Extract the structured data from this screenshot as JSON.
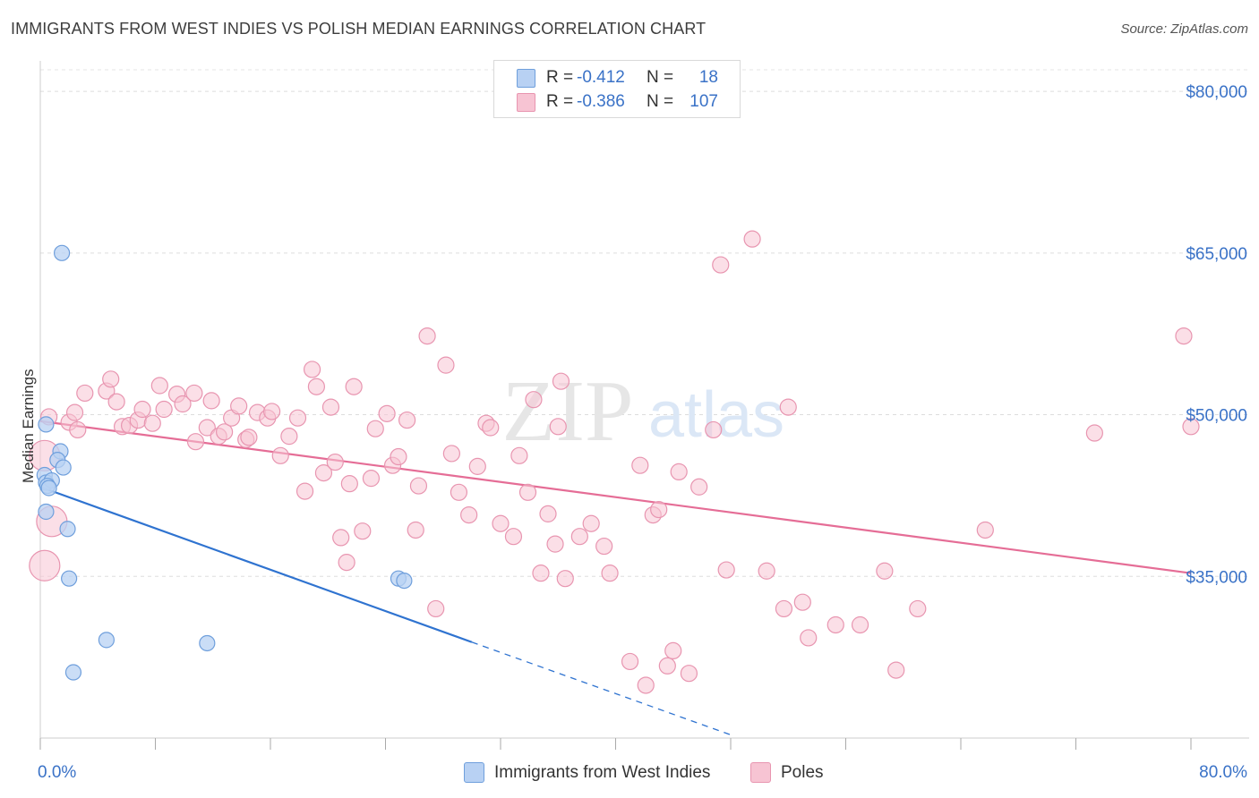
{
  "title": "IMMIGRANTS FROM WEST INDIES VS POLISH MEDIAN EARNINGS CORRELATION CHART",
  "source": "Source: ZipAtlas.com",
  "watermark": {
    "zip": "ZIP",
    "atlas": "atlas"
  },
  "legend": {
    "rows": [
      {
        "r_label": "R =",
        "r_value": "-0.412",
        "n_label": "N =",
        "n_value": "18"
      },
      {
        "r_label": "R =",
        "r_value": "-0.386",
        "n_label": "N =",
        "n_value": "107"
      }
    ]
  },
  "bottom_legend": {
    "series_1": "Immigrants from West Indies",
    "series_2": "Poles"
  },
  "colors": {
    "series_1_fill": "#b8d1f3",
    "series_1_stroke": "#6f9fdc",
    "series_1_line": "#2f73d0",
    "series_2_fill": "#f7c4d3",
    "series_2_stroke": "#e895b0",
    "series_2_line": "#e56d96",
    "axis_text": "#3a72c7"
  },
  "chart_data": {
    "type": "scatter",
    "title": "IMMIGRANTS FROM WEST INDIES VS POLISH MEDIAN EARNINGS CORRELATION CHART",
    "xlabel": "",
    "ylabel": "Median Earnings",
    "xlim": [
      0,
      80
    ],
    "ylim": [
      20000,
      82000
    ],
    "x_tick_labels": [
      "0.0%",
      "80.0%"
    ],
    "y_ticks": [
      35000,
      50000,
      65000,
      80000
    ],
    "y_tick_labels": [
      "$35,000",
      "$50,000",
      "$65,000",
      "$80,000"
    ],
    "grid": "horizontal dashed",
    "legend_position": "top-center",
    "series": [
      {
        "name": "Immigrants from West Indies",
        "points": [
          [
            0.4,
            49100
          ],
          [
            1.5,
            65000
          ],
          [
            1.4,
            46600
          ],
          [
            1.2,
            45800
          ],
          [
            1.6,
            45100
          ],
          [
            0.3,
            44400
          ],
          [
            0.4,
            43700
          ],
          [
            0.8,
            43900
          ],
          [
            0.5,
            43400
          ],
          [
            0.6,
            43200
          ],
          [
            0.4,
            41000
          ],
          [
            1.9,
            39400
          ],
          [
            2.0,
            34800
          ],
          [
            2.3,
            26100
          ],
          [
            4.6,
            29100
          ],
          [
            11.6,
            28800
          ],
          [
            24.9,
            34800
          ],
          [
            25.3,
            34600
          ]
        ],
        "trend": {
          "x": [
            0,
            30
          ],
          "y": [
            43300,
            28900
          ],
          "dashed_to": [
            48,
            20300
          ]
        }
      },
      {
        "name": "Poles",
        "points": [
          [
            0.6,
            49800
          ],
          [
            2.0,
            49300
          ],
          [
            2.4,
            50200
          ],
          [
            2.6,
            48600
          ],
          [
            3.1,
            52000
          ],
          [
            4.6,
            52200
          ],
          [
            4.9,
            53300
          ],
          [
            5.3,
            51200
          ],
          [
            5.7,
            48900
          ],
          [
            6.2,
            49000
          ],
          [
            6.8,
            49500
          ],
          [
            7.1,
            50500
          ],
          [
            7.8,
            49200
          ],
          [
            8.3,
            52700
          ],
          [
            8.6,
            50500
          ],
          [
            9.5,
            51900
          ],
          [
            9.9,
            51000
          ],
          [
            10.7,
            52000
          ],
          [
            10.8,
            47500
          ],
          [
            11.6,
            48800
          ],
          [
            11.9,
            51300
          ],
          [
            12.4,
            48000
          ],
          [
            12.8,
            48400
          ],
          [
            13.3,
            49700
          ],
          [
            13.8,
            50800
          ],
          [
            14.3,
            47700
          ],
          [
            14.5,
            47900
          ],
          [
            15.1,
            50200
          ],
          [
            15.8,
            49700
          ],
          [
            16.1,
            50300
          ],
          [
            16.7,
            46200
          ],
          [
            17.3,
            48000
          ],
          [
            17.9,
            49700
          ],
          [
            18.4,
            42900
          ],
          [
            18.9,
            54200
          ],
          [
            19.2,
            52600
          ],
          [
            19.7,
            44600
          ],
          [
            20.2,
            50700
          ],
          [
            20.5,
            45600
          ],
          [
            20.9,
            38600
          ],
          [
            21.3,
            36300
          ],
          [
            21.5,
            43600
          ],
          [
            21.8,
            52600
          ],
          [
            22.4,
            39200
          ],
          [
            23.0,
            44100
          ],
          [
            23.3,
            48700
          ],
          [
            24.1,
            50100
          ],
          [
            24.5,
            45300
          ],
          [
            24.9,
            46100
          ],
          [
            25.5,
            49500
          ],
          [
            26.1,
            39300
          ],
          [
            26.3,
            43400
          ],
          [
            26.9,
            57300
          ],
          [
            27.5,
            32000
          ],
          [
            28.2,
            54600
          ],
          [
            28.6,
            46400
          ],
          [
            29.1,
            42800
          ],
          [
            29.8,
            40700
          ],
          [
            30.4,
            45200
          ],
          [
            31.0,
            49200
          ],
          [
            31.3,
            48800
          ],
          [
            32.0,
            39900
          ],
          [
            32.9,
            38700
          ],
          [
            33.3,
            46200
          ],
          [
            33.9,
            42800
          ],
          [
            34.3,
            51400
          ],
          [
            34.8,
            35300
          ],
          [
            35.3,
            40800
          ],
          [
            35.8,
            38000
          ],
          [
            36.0,
            48900
          ],
          [
            36.2,
            53100
          ],
          [
            36.5,
            34800
          ],
          [
            37.5,
            38700
          ],
          [
            38.3,
            39900
          ],
          [
            39.2,
            37800
          ],
          [
            39.6,
            35300
          ],
          [
            41.0,
            27100
          ],
          [
            41.7,
            45300
          ],
          [
            42.1,
            24900
          ],
          [
            42.6,
            40700
          ],
          [
            43.0,
            41200
          ],
          [
            43.6,
            26700
          ],
          [
            44.0,
            28100
          ],
          [
            44.4,
            44700
          ],
          [
            45.1,
            26000
          ],
          [
            45.8,
            43300
          ],
          [
            46.8,
            48600
          ],
          [
            47.3,
            63900
          ],
          [
            47.7,
            35600
          ],
          [
            49.5,
            66300
          ],
          [
            50.5,
            35500
          ],
          [
            51.7,
            32000
          ],
          [
            52.0,
            50700
          ],
          [
            53.0,
            32600
          ],
          [
            53.4,
            29300
          ],
          [
            55.3,
            30500
          ],
          [
            57.0,
            30500
          ],
          [
            58.7,
            35500
          ],
          [
            59.5,
            26300
          ],
          [
            61.0,
            32000
          ],
          [
            65.7,
            39300
          ],
          [
            73.3,
            48300
          ],
          [
            79.5,
            57300
          ],
          [
            80.0,
            48900
          ],
          [
            0.3,
            46200
          ],
          [
            0.3,
            36000
          ],
          [
            0.8,
            40100
          ]
        ],
        "trend": {
          "x": [
            0,
            80
          ],
          "y": [
            49400,
            35300
          ]
        }
      }
    ]
  }
}
